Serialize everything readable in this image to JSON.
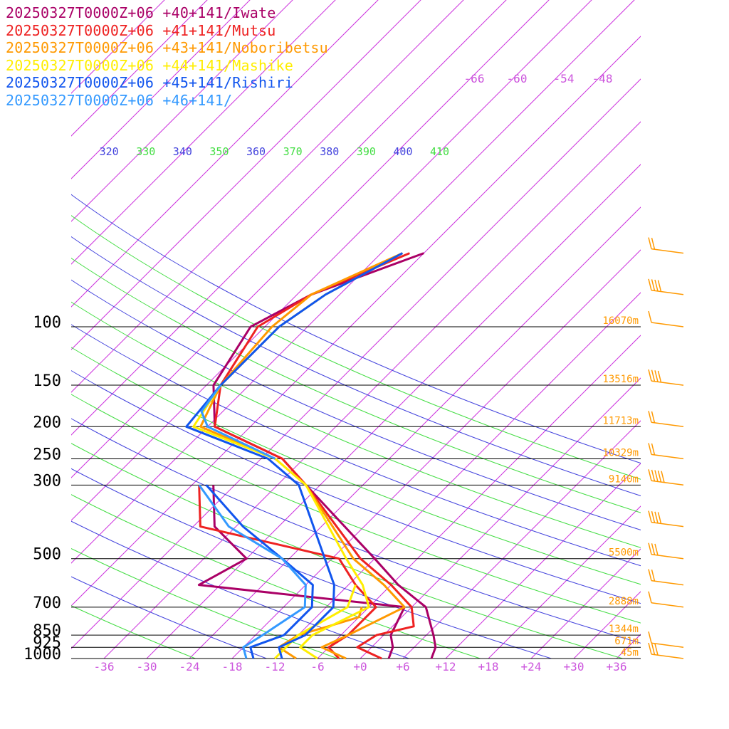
{
  "chart_data": {
    "type": "line",
    "title": "",
    "xlabel": "",
    "ylabel": "",
    "pressure_levels": [
      100,
      150,
      200,
      250,
      300,
      500,
      700,
      850,
      925,
      1000
    ],
    "pressure_labels": [
      "100",
      "150",
      "200",
      "250",
      "300",
      "500",
      "700",
      "850",
      "925",
      "1000"
    ],
    "height_labels": [
      {
        "p": 100,
        "text": "16070m"
      },
      {
        "p": 150,
        "text": "13516m"
      },
      {
        "p": 200,
        "text": "11713m"
      },
      {
        "p": 250,
        "text": "10329m"
      },
      {
        "p": 300,
        "text": "9140m"
      },
      {
        "p": 500,
        "text": "5500m"
      },
      {
        "p": 700,
        "text": "2888m"
      },
      {
        "p": 850,
        "text": "1344m"
      },
      {
        "p": 925,
        "text": "671m"
      },
      {
        "p": 1000,
        "text": "45m"
      }
    ],
    "temperature_ticks": [
      {
        "t": -36,
        "text": "-36"
      },
      {
        "t": -30,
        "text": "-30"
      },
      {
        "t": -24,
        "text": "-24"
      },
      {
        "t": -18,
        "text": "-18"
      },
      {
        "t": -12,
        "text": "-12"
      },
      {
        "t": -6,
        "text": "-6"
      },
      {
        "t": 0,
        "text": "+0"
      },
      {
        "t": 6,
        "text": "+6"
      },
      {
        "t": 12,
        "text": "+12"
      },
      {
        "t": 18,
        "text": "+18"
      },
      {
        "t": 24,
        "text": "+24"
      },
      {
        "t": 30,
        "text": "+30"
      },
      {
        "t": 36,
        "text": "+36"
      }
    ],
    "upper_temp_labels": [
      "-66",
      "-60",
      "-54",
      "-48"
    ],
    "theta_labels": [
      {
        "text": "310",
        "color": "#44dd44"
      },
      {
        "text": "320",
        "color": "#4444dd"
      },
      {
        "text": "330",
        "color": "#44dd44"
      },
      {
        "text": "340",
        "color": "#4444dd"
      },
      {
        "text": "350",
        "color": "#44dd44"
      },
      {
        "text": "360",
        "color": "#4444dd"
      },
      {
        "text": "370",
        "color": "#44dd44"
      },
      {
        "text": "380",
        "color": "#4444dd"
      },
      {
        "text": "390",
        "color": "#44dd44"
      },
      {
        "text": "400",
        "color": "#4444dd"
      },
      {
        "text": "410",
        "color": "#44dd44"
      }
    ],
    "series": [
      {
        "name": "20250327T0000Z+06 +40+141/Iwate",
        "color": "#aa0066",
        "temperature": [
          [
            60,
            -48
          ],
          [
            80,
            -58
          ],
          [
            100,
            -62
          ],
          [
            150,
            -59
          ],
          [
            200,
            -53
          ],
          [
            250,
            -39
          ],
          [
            300,
            -32
          ],
          [
            500,
            -12
          ],
          [
            600,
            -5
          ],
          [
            700,
            2
          ],
          [
            850,
            7
          ],
          [
            925,
            9
          ],
          [
            1000,
            10
          ]
        ],
        "dewpoint": [
          [
            300,
            -45
          ],
          [
            400,
            -39
          ],
          [
            500,
            -30
          ],
          [
            600,
            -33
          ],
          [
            700,
            -1
          ],
          [
            850,
            1
          ],
          [
            925,
            3
          ],
          [
            1000,
            4
          ]
        ]
      },
      {
        "name": "20250327T0000Z+06 +41+141/Mutsu",
        "color": "#ee2222",
        "temperature": [
          [
            60,
            -50
          ],
          [
            80,
            -58
          ],
          [
            100,
            -61
          ],
          [
            150,
            -58
          ],
          [
            200,
            -53
          ],
          [
            250,
            -39
          ],
          [
            300,
            -32
          ],
          [
            500,
            -14
          ],
          [
            600,
            -6
          ],
          [
            700,
            0
          ],
          [
            800,
            3
          ],
          [
            850,
            -1
          ],
          [
            925,
            -2
          ],
          [
            1000,
            3
          ]
        ],
        "dewpoint": [
          [
            300,
            -47
          ],
          [
            400,
            -41
          ],
          [
            500,
            -17
          ],
          [
            600,
            -11
          ],
          [
            700,
            -5
          ],
          [
            850,
            -5
          ],
          [
            925,
            -6
          ],
          [
            1000,
            -3
          ]
        ]
      },
      {
        "name": "20250327T0000Z+06 +43+141/Noboribetsu",
        "color": "#ff9900",
        "temperature": [
          [
            60,
            -51
          ],
          [
            80,
            -58
          ],
          [
            100,
            -59
          ],
          [
            150,
            -58
          ],
          [
            200,
            -55
          ],
          [
            250,
            -40
          ],
          [
            300,
            -32
          ],
          [
            500,
            -15
          ],
          [
            600,
            -7
          ],
          [
            700,
            -1
          ],
          [
            850,
            -5
          ],
          [
            925,
            -7
          ],
          [
            1000,
            -2
          ]
        ],
        "dewpoint": [
          [
            700,
            -7
          ],
          [
            750,
            -6
          ],
          [
            800,
            -9
          ],
          [
            850,
            -12
          ],
          [
            925,
            -13
          ],
          [
            1000,
            -9
          ]
        ]
      },
      {
        "name": "20250327T0000Z+06 +44+141/Mashike",
        "color": "#ffee00",
        "temperature": [
          [
            60,
            -51
          ],
          [
            80,
            -56
          ],
          [
            100,
            -58
          ],
          [
            150,
            -58
          ],
          [
            200,
            -56
          ],
          [
            250,
            -40
          ],
          [
            300,
            -32
          ],
          [
            500,
            -16
          ],
          [
            600,
            -10
          ],
          [
            700,
            -6
          ],
          [
            850,
            -10
          ],
          [
            925,
            -10
          ],
          [
            1000,
            -6
          ]
        ],
        "dewpoint": [
          [
            600,
            -11
          ],
          [
            700,
            -9
          ],
          [
            850,
            -12
          ],
          [
            925,
            -12
          ],
          [
            1000,
            -12
          ]
        ]
      },
      {
        "name": "20250327T0000Z+06 +45+141/Rishiri",
        "color": "#1155ee",
        "temperature": [
          [
            60,
            -51
          ],
          [
            80,
            -56
          ],
          [
            100,
            -58
          ],
          [
            150,
            -58
          ],
          [
            200,
            -57
          ],
          [
            250,
            -41
          ],
          [
            300,
            -33
          ],
          [
            500,
            -19
          ],
          [
            600,
            -14
          ],
          [
            700,
            -11
          ],
          [
            850,
            -11
          ],
          [
            925,
            -13
          ],
          [
            1000,
            -11
          ]
        ],
        "dewpoint": [
          [
            300,
            -46
          ],
          [
            400,
            -35
          ],
          [
            500,
            -25
          ],
          [
            600,
            -17
          ],
          [
            700,
            -14
          ],
          [
            850,
            -14
          ],
          [
            925,
            -17
          ],
          [
            1000,
            -15
          ]
        ]
      },
      {
        "name": "20250327T0000Z+06 +46+141/",
        "color": "#3399ff",
        "temperature": [
          [
            150,
            -58
          ],
          [
            180,
            -57
          ],
          [
            200,
            -54
          ],
          [
            250,
            -40
          ]
        ],
        "dewpoint": [
          [
            300,
            -47
          ],
          [
            400,
            -37
          ],
          [
            500,
            -25
          ],
          [
            600,
            -18
          ],
          [
            700,
            -15
          ],
          [
            850,
            -17
          ],
          [
            925,
            -18
          ],
          [
            1000,
            -16
          ]
        ]
      }
    ],
    "wind_barbs": {
      "color": "#ff9900",
      "levels": [
        60,
        80,
        100,
        150,
        200,
        250,
        300,
        400,
        500,
        600,
        700,
        925,
        1000
      ]
    }
  }
}
